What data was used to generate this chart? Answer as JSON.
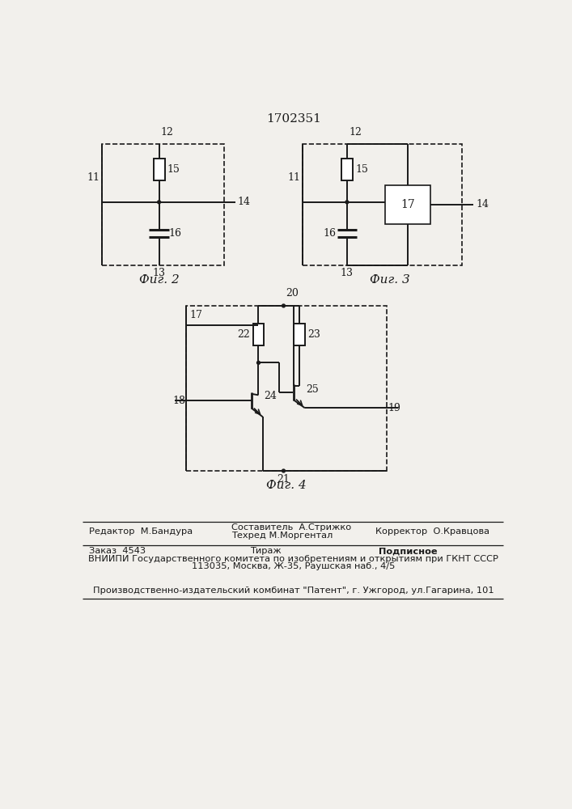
{
  "title": "1702351",
  "bg_color": "#f2f0ec",
  "line_color": "#1a1a1a",
  "fig2_label": "Фиг. 2",
  "fig3_label": "Фиг. 3",
  "fig4_label": "Фиг. 4",
  "footer_editor": "Редактор  М.Бандура",
  "footer_comp": "Составитель  А.Стрижко",
  "footer_tech": "Техред М.Моргентал",
  "footer_corr": "Корректор  О.Кравцова",
  "footer_order": "Заказ  4543",
  "footer_circ": "Тираж",
  "footer_sub": "Подписное",
  "footer_org1": "ВНИИПИ Государственного комитета по изобретениям и открытиям при ГКНТ СССР",
  "footer_org2": "113035, Москва, Ж-35, Раушская наб., 4/5",
  "footer_prod": "Производственно-издательский комбинат \"Патент\", г. Ужгород, ул.Гагарина, 101"
}
